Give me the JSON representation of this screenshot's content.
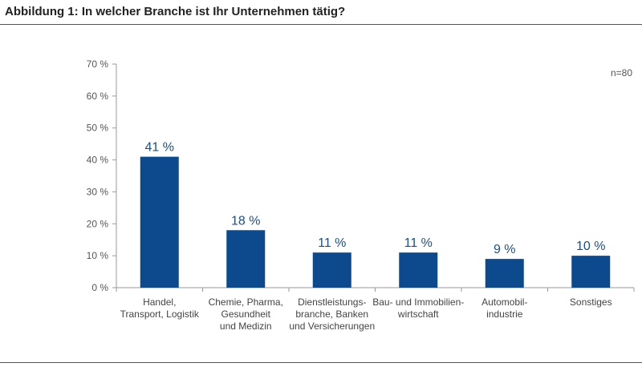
{
  "header": {
    "title": "Abbildung 1: In welcher Branche ist Ihr Unternehmen tätig?"
  },
  "note": "n=80",
  "colors": {
    "bar": "#0d4a8d",
    "axis": "#999999",
    "label": "#1b4f8c"
  },
  "chart_data": {
    "type": "bar",
    "categories": [
      [
        "Handel,",
        "Transport, Logistik"
      ],
      [
        "Chemie, Pharma,",
        "Gesundheit",
        "und Medizin"
      ],
      [
        "Dienstleistungs-",
        "branche, Banken",
        "und Versicherungen"
      ],
      [
        "Bau- und Immobilien-",
        "wirtschaft"
      ],
      [
        "Automobil-",
        "industrie"
      ],
      [
        "Sonstiges"
      ]
    ],
    "values": [
      41,
      18,
      11,
      11,
      9,
      10
    ],
    "value_labels": [
      "41 %",
      "18 %",
      "11 %",
      "11 %",
      "9 %",
      "10 %"
    ],
    "yticks": [
      0,
      10,
      20,
      30,
      40,
      50,
      60,
      70
    ],
    "ytick_labels": [
      "0 %",
      "10 %",
      "20 %",
      "30 %",
      "40 %",
      "50 %",
      "60 %",
      "70 %"
    ],
    "ylim": [
      0,
      70
    ],
    "grid": false
  }
}
